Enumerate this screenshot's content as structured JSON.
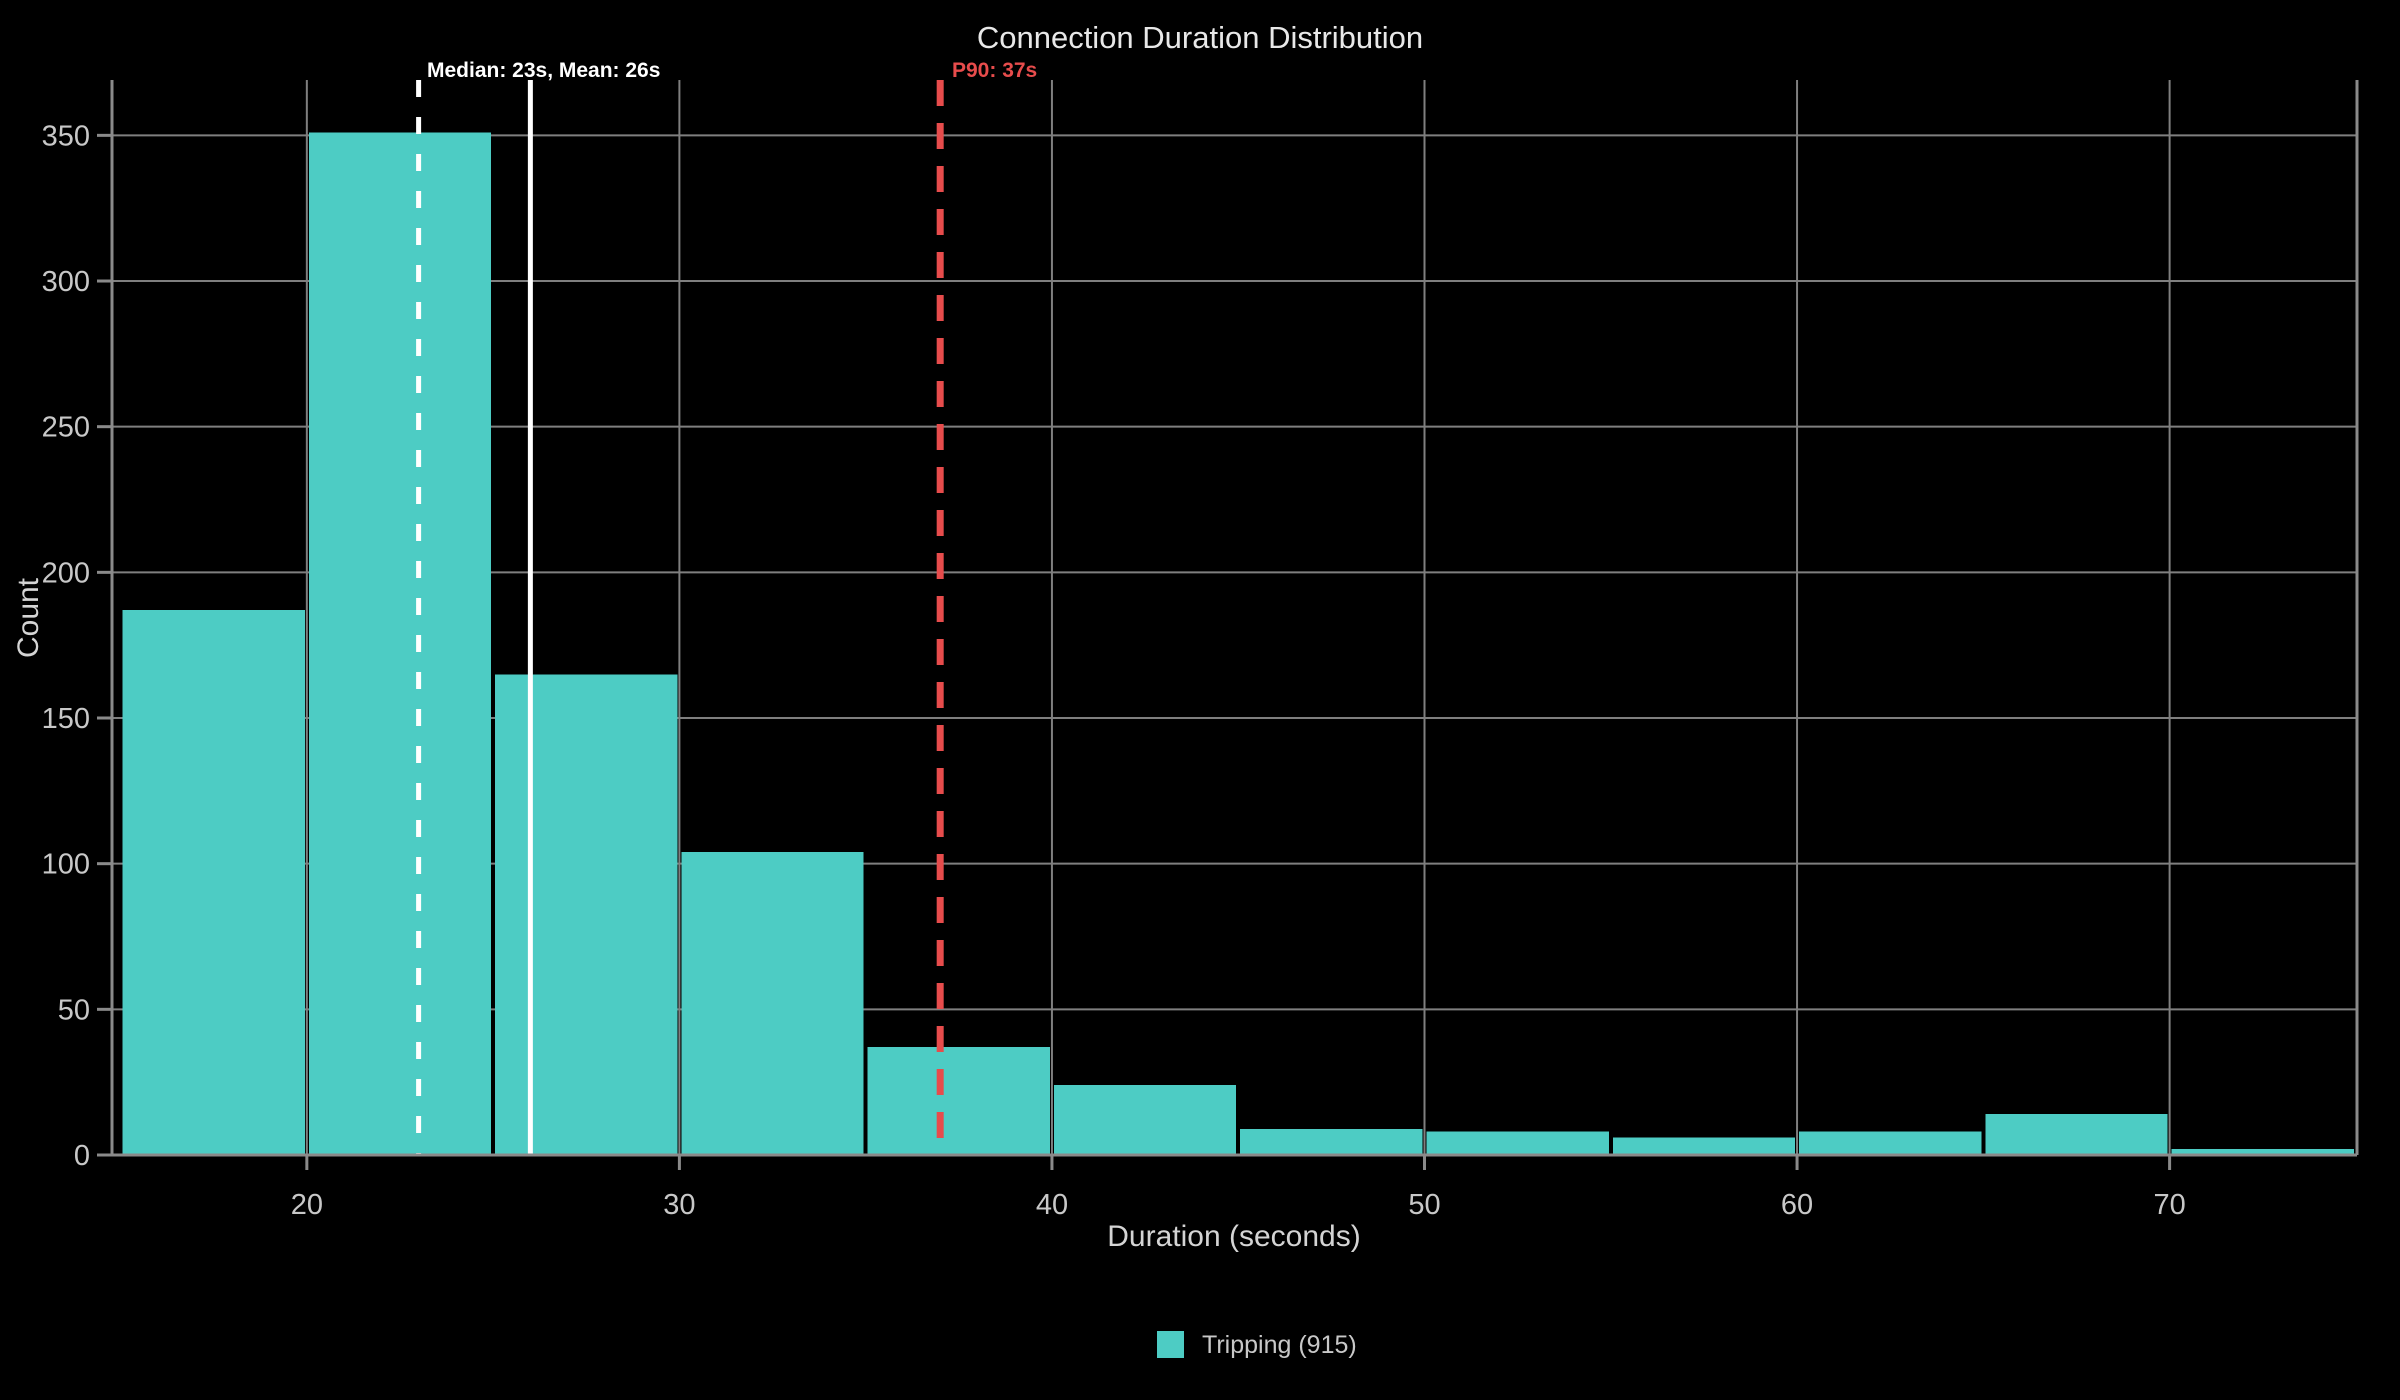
{
  "title": "Connection Duration Distribution",
  "chart_data": {
    "type": "bar",
    "histogram": true,
    "title": "Connection Duration Distribution",
    "xlabel": "Duration (seconds)",
    "ylabel": "Count",
    "bin_edges": [
      15,
      20,
      25,
      30,
      35,
      40,
      45,
      50,
      55,
      60,
      65,
      70,
      75
    ],
    "bin_labels": [
      "15-20s",
      "20-25s",
      "25-30s",
      "30-35s",
      "35-40s",
      "40-45s",
      "45-50s",
      "50-55s",
      "55-60s",
      "60-65s",
      "65-70s",
      "70-75s"
    ],
    "values": [
      187,
      351,
      165,
      104,
      37,
      24,
      9,
      8,
      6,
      8,
      14,
      2
    ],
    "total_count": 915,
    "xticks": [
      20,
      30,
      40,
      50,
      60,
      70
    ],
    "yticks": [
      0,
      50,
      100,
      150,
      200,
      250,
      300,
      350
    ],
    "xlim": [
      14.77,
      75.03
    ],
    "ylim": [
      0,
      369
    ],
    "grid": true,
    "legend": [
      {
        "label": "Tripping (915)",
        "color": "#4DCCC4"
      }
    ],
    "reference_lines": [
      {
        "name": "median",
        "x": 23,
        "style": "dashed",
        "color": "#FFFFFF",
        "label": "Median: 23s, Mean: 26s"
      },
      {
        "name": "mean",
        "x": 26,
        "style": "solid",
        "color": "#FFFFFF",
        "label": ""
      },
      {
        "name": "p90",
        "x": 37,
        "style": "dashed",
        "color": "#E74C4C",
        "label": "P90: 37s"
      }
    ],
    "colors": {
      "background": "#000000",
      "bar": "#4DCCC4",
      "grid": "#7F7F7F",
      "spine": "#8A8A8A",
      "tick_label": "#C8C8C8",
      "axis_label": "#D4D4D4",
      "title": "#E8E8E8",
      "legend_text": "#C8C8C8"
    }
  }
}
